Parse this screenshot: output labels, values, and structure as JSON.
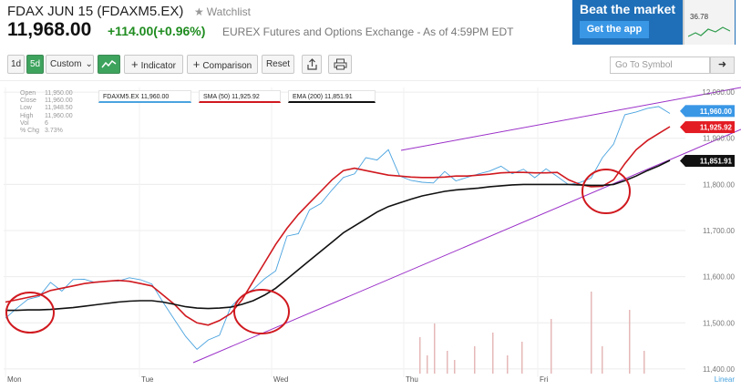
{
  "header": {
    "name": "FDAX JUN 15 (FDAXM5.EX)",
    "watchlist": "Watchlist",
    "price": "11,968.00",
    "change": "+114.00(+0.96%)",
    "exchange": "EUREX Futures and Options Exchange - As of 4:59PM EDT"
  },
  "ad": {
    "title": "Beat the market",
    "button": "Get the app",
    "phone_value": "36.78"
  },
  "toolbar": {
    "range_1d": "1d",
    "range_5d": "5d",
    "custom": "Custom",
    "indicator": "Indicator",
    "comparison": "Comparison",
    "reset": "Reset",
    "goto_placeholder": "Go To Symbol"
  },
  "ohlc": {
    "open_label": "Open",
    "open": "11,950.00",
    "close_label": "Close",
    "close": "11,960.00",
    "low_label": "Low",
    "low": "11,948.50",
    "high_label": "High",
    "high": "11,960.00",
    "vol_label": "Vol",
    "vol": "6",
    "chg_label": "% Chg",
    "chg": "3.73%"
  },
  "legend": {
    "series1": "FDAXM5.EX 11,960.00",
    "series2": "SMA (50) 11,925.92",
    "series3": "EMA (200) 11,851.91"
  },
  "chart_data": {
    "type": "line",
    "x_labels": [
      "Mon",
      "Tue",
      "Wed",
      "Thu",
      "Fri"
    ],
    "y_ticks": [
      "12,000.00",
      "11,900.00",
      "11,800.00",
      "11,700.00",
      "11,600.00",
      "11,500.00",
      "11,400.00"
    ],
    "y_values": [
      12000,
      11900,
      11800,
      11700,
      11600,
      11500,
      11400
    ],
    "ylim": [
      11390,
      12010
    ],
    "scale_label": "Linear",
    "series": [
      {
        "name": "FDAXM5.EX",
        "color": "#4aa3df",
        "last": "11,960.00",
        "values": [
          11510,
          11535,
          11545,
          11565,
          11580,
          11575,
          11590,
          11595,
          11590,
          11585,
          11598,
          11590,
          11600,
          11580,
          11545,
          11510,
          11465,
          11450,
          11455,
          11480,
          11530,
          11560,
          11575,
          11590,
          11620,
          11680,
          11700,
          11740,
          11760,
          11790,
          11810,
          11830,
          11850,
          11860,
          11870,
          11820,
          11810,
          11800,
          11810,
          11820,
          11815,
          11810,
          11825,
          11830,
          11835,
          11830,
          11825,
          11822,
          11828,
          11820,
          11800,
          11800,
          11820,
          11850,
          11895,
          11945,
          11960,
          11965,
          11965,
          11960
        ]
      },
      {
        "name": "SMA (50)",
        "color": "#d0191f",
        "last": "11,925.92",
        "values": [
          11545,
          11550,
          11555,
          11560,
          11570,
          11575,
          11580,
          11585,
          11588,
          11590,
          11592,
          11590,
          11585,
          11580,
          11560,
          11540,
          11515,
          11500,
          11495,
          11505,
          11520,
          11550,
          11590,
          11630,
          11670,
          11705,
          11735,
          11760,
          11785,
          11810,
          11830,
          11835,
          11830,
          11825,
          11820,
          11818,
          11816,
          11815,
          11815,
          11816,
          11818,
          11818,
          11820,
          11822,
          11825,
          11826,
          11826,
          11825,
          11825,
          11826,
          11810,
          11800,
          11795,
          11796,
          11810,
          11845,
          11875,
          11895,
          11910,
          11925
        ]
      },
      {
        "name": "EMA (200)",
        "color": "#111111",
        "last": "11,851.91",
        "values": [
          11527,
          11527,
          11528,
          11528,
          11529,
          11531,
          11533,
          11536,
          11539,
          11542,
          11545,
          11547,
          11548,
          11548,
          11545,
          11540,
          11535,
          11532,
          11531,
          11532,
          11534,
          11540,
          11548,
          11560,
          11575,
          11595,
          11615,
          11635,
          11655,
          11675,
          11695,
          11710,
          11725,
          11740,
          11752,
          11760,
          11768,
          11775,
          11780,
          11785,
          11788,
          11790,
          11792,
          11795,
          11797,
          11799,
          11800,
          11800,
          11800,
          11800,
          11800,
          11799,
          11798,
          11798,
          11800,
          11808,
          11818,
          11830,
          11840,
          11852
        ]
      }
    ],
    "trendlines": [
      {
        "name": "upper-trendline",
        "color": "#9b30c8"
      },
      {
        "name": "lower-trendline",
        "color": "#9b30c8"
      }
    ],
    "highlight_color": "#d0191f"
  }
}
